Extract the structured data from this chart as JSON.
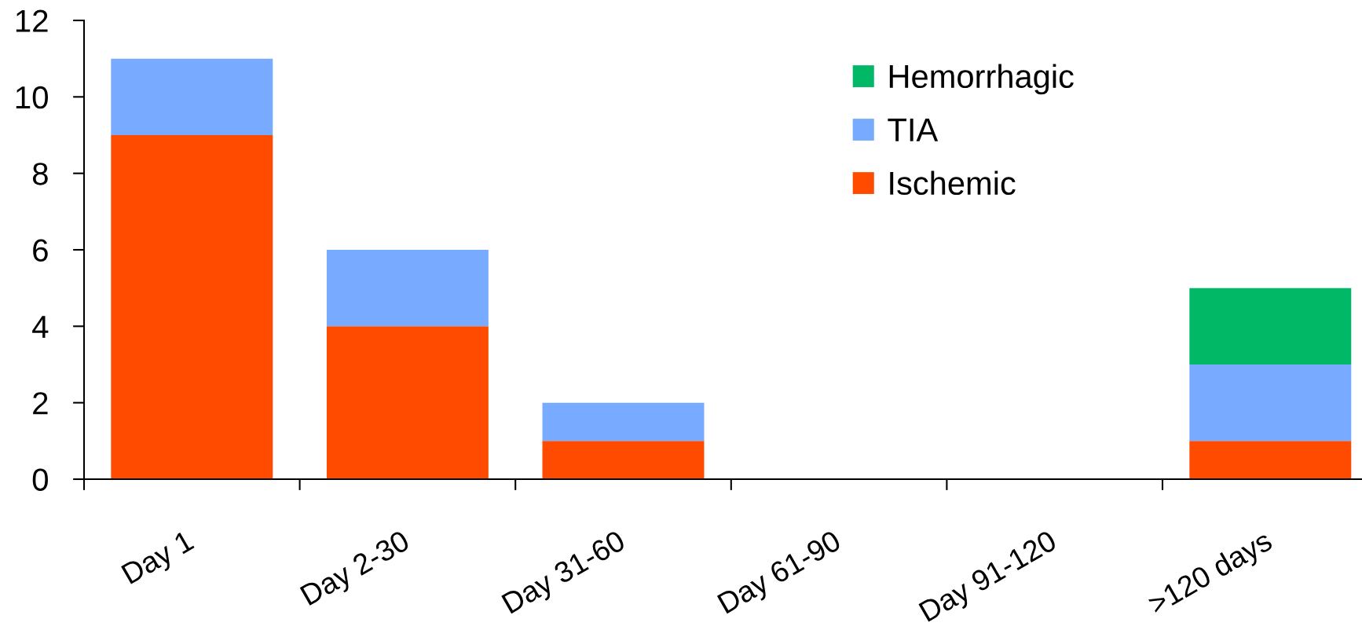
{
  "chart_data": {
    "type": "bar",
    "stacked": true,
    "categories": [
      "Day 1",
      "Day 2-30",
      "Day 31-60",
      "Day 61-90",
      "Day 91-120",
      ">120 days"
    ],
    "series": [
      {
        "name": "Ischemic",
        "color": "#ff4b00",
        "values": [
          9,
          4,
          1,
          0,
          0,
          1
        ]
      },
      {
        "name": "TIA",
        "color": "#78abff",
        "values": [
          2,
          2,
          1,
          0,
          0,
          2
        ]
      },
      {
        "name": "Hemorrhagic",
        "color": "#00b865",
        "values": [
          0,
          0,
          0,
          0,
          0,
          2
        ]
      }
    ],
    "ylim": [
      0,
      12
    ],
    "yticks": [
      0,
      2,
      4,
      6,
      8,
      10,
      12
    ],
    "legend": "top right"
  }
}
